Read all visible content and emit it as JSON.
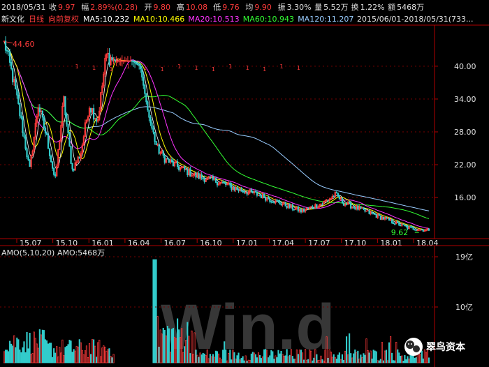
{
  "header": {
    "date": "2018/05/31",
    "items": [
      {
        "label": "收",
        "value": "9.97",
        "color": "#ff3b3b"
      },
      {
        "label": "幅",
        "value": "2.89%(0.28)",
        "color": "#ff3b3b"
      },
      {
        "label": "开",
        "value": "9.80",
        "color": "#ff3b3b"
      },
      {
        "label": "高",
        "value": "10.08",
        "color": "#ff3b3b"
      },
      {
        "label": "低",
        "value": "9.76",
        "color": "#ff3b3b"
      },
      {
        "label": "均",
        "value": "9.90",
        "color": "#ff3b3b"
      },
      {
        "label": "振",
        "value": "3.30%",
        "color": "#e0e0e0"
      },
      {
        "label": "量",
        "value": "5.52万",
        "color": "#e0e0e0"
      },
      {
        "label": "换",
        "value": "1.22%",
        "color": "#e0e0e0"
      },
      {
        "label": "额",
        "value": "5468万",
        "color": "#e0e0e0"
      }
    ]
  },
  "legend": {
    "stock_name": "新文化",
    "period": "日线",
    "adjust": "向前复权",
    "ma": [
      {
        "text": "MA5:10.232",
        "color": "#ffffff"
      },
      {
        "text": "MA10:10.466",
        "color": "#ffff00"
      },
      {
        "text": "MA20:10.513",
        "color": "#ff33ff"
      },
      {
        "text": "MA60:10.943",
        "color": "#33ff33"
      },
      {
        "text": "MA120:11.207",
        "color": "#99ccff"
      }
    ],
    "range": "2015/06/01-2018/05/31(733..."
  },
  "volume_legend": {
    "title": "AMO(5,10,20)",
    "value": "AMO:5468万"
  },
  "watermark": "Win.d",
  "brand": "翠鸟资本",
  "colors": {
    "up": "#ff3b3b",
    "down": "#33cccc",
    "axis": "#b00000",
    "ma5": "#ffffff",
    "ma10": "#ffff00",
    "ma20": "#ff33ff",
    "ma60": "#33ff33",
    "ma120": "#99ccff"
  },
  "chart_data": [
    {
      "type": "candlestick",
      "x_ticks": [
        "15.07",
        "15.10",
        "16.01",
        "16.04",
        "16.07",
        "16.10",
        "17.01",
        "17.04",
        "17.07",
        "17.10",
        "18.01",
        "18.04"
      ],
      "y_ticks": [
        "40.00",
        "34.00",
        "28.00",
        "22.00",
        "16.00"
      ],
      "ylim": [
        9,
        47
      ],
      "annotations": [
        {
          "text": "44.60",
          "value": 44.6
        },
        {
          "text": "9.62",
          "value": 9.62
        }
      ],
      "series": [
        {
          "name": "close",
          "x": [
            0,
            0.02,
            0.04,
            0.06,
            0.08,
            0.1,
            0.12,
            0.14,
            0.16,
            0.18,
            0.2,
            0.22,
            0.24,
            0.26,
            0.28,
            0.3,
            0.32,
            0.34,
            0.36,
            0.38,
            0.4,
            0.45,
            0.5,
            0.55,
            0.6,
            0.65,
            0.7,
            0.75,
            0.78,
            0.8,
            0.85,
            0.9,
            0.95,
            1
          ],
          "values": [
            44.6,
            38,
            30,
            21,
            33,
            27,
            19,
            34,
            21,
            24,
            33,
            30,
            42,
            41,
            41,
            41,
            40,
            31,
            25,
            23,
            22,
            20,
            19,
            17.5,
            16.5,
            15,
            13.5,
            15,
            16.5,
            15,
            13.5,
            12,
            10.5,
            9.97
          ]
        }
      ]
    },
    {
      "type": "bar",
      "y_ticks": [
        "19亿",
        "10亿"
      ],
      "ylim": [
        0,
        19
      ],
      "series": [
        {
          "name": "AMO",
          "note": "daily traded amount"
        }
      ]
    }
  ]
}
